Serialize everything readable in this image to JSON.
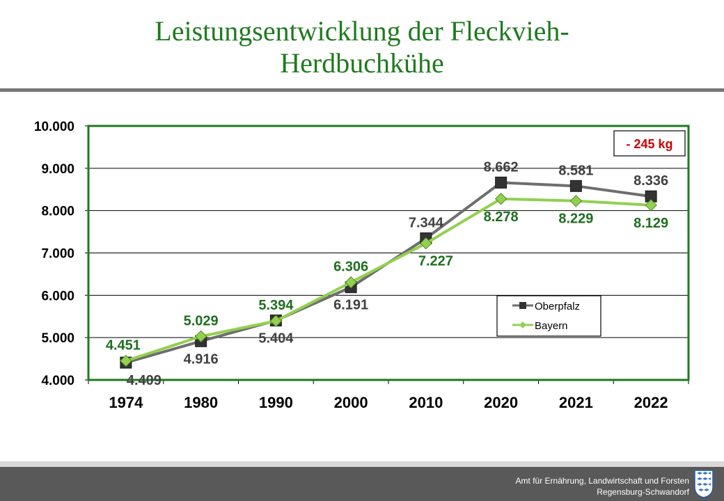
{
  "title": {
    "line1": "Leistungsentwicklung der Fleckvieh-",
    "line2": "Herdbuchkühe"
  },
  "footer": {
    "line1": "Amt für Ernährung,  Landwirtschaft  und Forsten",
    "line2": "Regensburg-Schwandorf"
  },
  "colors": {
    "title": "#1f7a1f",
    "plot_border": "#1e7a1e",
    "oberpfalz": "#6e6e6e",
    "oberpfalz_marker": "#333333",
    "bayern": "#92d050",
    "bayern_label": "#1e6e1e",
    "annotation": "#cc0000"
  },
  "chart_data": {
    "type": "line",
    "categories": [
      "1974",
      "1980",
      "1990",
      "2000",
      "2010",
      "2020",
      "2021",
      "2022"
    ],
    "ylim": [
      4000,
      10000
    ],
    "yticks": [
      "4.000",
      "5.000",
      "6.000",
      "7.000",
      "8.000",
      "9.000",
      "10.000"
    ],
    "grid": true,
    "legend_position": "right",
    "annotation": "- 245 kg",
    "series": [
      {
        "name": "Oberpfalz",
        "values": [
          4409,
          4916,
          5404,
          6191,
          7344,
          8662,
          8581,
          8336
        ],
        "labels": [
          "4.409",
          "4.916",
          "5.404",
          "6.191",
          "7.344",
          "8.662",
          "8.581",
          "8.336"
        ]
      },
      {
        "name": "Bayern",
        "values": [
          4451,
          5029,
          5394,
          6306,
          7227,
          8278,
          8229,
          8129
        ],
        "labels": [
          "4.451",
          "5.029",
          "5.394",
          "6.306",
          "7.227",
          "8.278",
          "8.229",
          "8.129"
        ]
      }
    ]
  }
}
